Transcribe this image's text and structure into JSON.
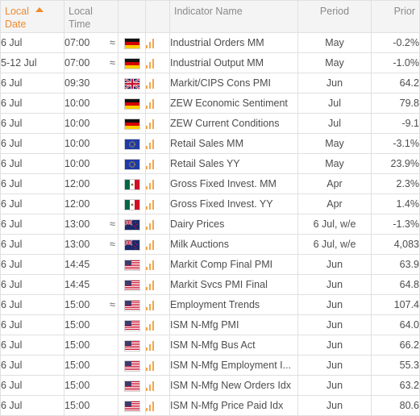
{
  "header": {
    "local_date": [
      "Local",
      "Date"
    ],
    "local_time": [
      "Local",
      "Time"
    ],
    "indicator": "Indicator Name",
    "period": "Period",
    "prior": "Prior"
  },
  "colors": {
    "accent": "#f08a2c",
    "signal_bars": "#f1a64a"
  },
  "rows": [
    {
      "date": "6 Jul",
      "time": "07:00",
      "approx": "≈",
      "flag": "de-flag-icon",
      "name": "Industrial Orders MM",
      "period": "May",
      "prior": "-0.2%"
    },
    {
      "date": "5-12 Jul",
      "time": "07:00",
      "approx": "≈",
      "flag": "de-flag-icon",
      "name": "Industrial Output MM",
      "period": "May",
      "prior": "-1.0%"
    },
    {
      "date": "6 Jul",
      "time": "09:30",
      "approx": "",
      "flag": "gb-flag-icon",
      "name": "Markit/CIPS Cons PMI",
      "period": "Jun",
      "prior": "64.2"
    },
    {
      "date": "6 Jul",
      "time": "10:00",
      "approx": "",
      "flag": "de-flag-icon",
      "name": "ZEW Economic Sentiment",
      "period": "Jul",
      "prior": "79.8"
    },
    {
      "date": "6 Jul",
      "time": "10:00",
      "approx": "",
      "flag": "de-flag-icon",
      "name": "ZEW Current Conditions",
      "period": "Jul",
      "prior": "-9.1"
    },
    {
      "date": "6 Jul",
      "time": "10:00",
      "approx": "",
      "flag": "eu-flag-icon",
      "name": "Retail Sales MM",
      "period": "May",
      "prior": "-3.1%"
    },
    {
      "date": "6 Jul",
      "time": "10:00",
      "approx": "",
      "flag": "eu-flag-icon",
      "name": "Retail Sales YY",
      "period": "May",
      "prior": "23.9%"
    },
    {
      "date": "6 Jul",
      "time": "12:00",
      "approx": "",
      "flag": "mx-flag-icon",
      "name": "Gross Fixed Invest. MM",
      "period": "Apr",
      "prior": "2.3%"
    },
    {
      "date": "6 Jul",
      "time": "12:00",
      "approx": "",
      "flag": "mx-flag-icon",
      "name": "Gross Fixed Invest. YY",
      "period": "Apr",
      "prior": "1.4%"
    },
    {
      "date": "6 Jul",
      "time": "13:00",
      "approx": "≈",
      "flag": "nz-flag-icon",
      "name": "Dairy Prices",
      "period": "6 Jul, w/e",
      "prior": "-1.3%"
    },
    {
      "date": "6 Jul",
      "time": "13:00",
      "approx": "≈",
      "flag": "nz-flag-icon",
      "name": "Milk Auctions",
      "period": "6 Jul, w/e",
      "prior": "4,083"
    },
    {
      "date": "6 Jul",
      "time": "14:45",
      "approx": "",
      "flag": "us-flag-icon",
      "name": "Markit Comp Final PMI",
      "period": "Jun",
      "prior": "63.9"
    },
    {
      "date": "6 Jul",
      "time": "14:45",
      "approx": "",
      "flag": "us-flag-icon",
      "name": "Markit Svcs PMI Final",
      "period": "Jun",
      "prior": "64.8"
    },
    {
      "date": "6 Jul",
      "time": "15:00",
      "approx": "≈",
      "flag": "us-flag-icon",
      "name": "Employment Trends",
      "period": "Jun",
      "prior": "107.4"
    },
    {
      "date": "6 Jul",
      "time": "15:00",
      "approx": "",
      "flag": "us-flag-icon",
      "name": "ISM N-Mfg PMI",
      "period": "Jun",
      "prior": "64.0"
    },
    {
      "date": "6 Jul",
      "time": "15:00",
      "approx": "",
      "flag": "us-flag-icon",
      "name": "ISM N-Mfg Bus Act",
      "period": "Jun",
      "prior": "66.2"
    },
    {
      "date": "6 Jul",
      "time": "15:00",
      "approx": "",
      "flag": "us-flag-icon",
      "name": "ISM N-Mfg Employment I...",
      "period": "Jun",
      "prior": "55.3"
    },
    {
      "date": "6 Jul",
      "time": "15:00",
      "approx": "",
      "flag": "us-flag-icon",
      "name": "ISM N-Mfg New Orders Idx",
      "period": "Jun",
      "prior": "63.2"
    },
    {
      "date": "6 Jul",
      "time": "15:00",
      "approx": "",
      "flag": "us-flag-icon",
      "name": "ISM N-Mfg Price Paid Idx",
      "period": "Jun",
      "prior": "80.6"
    }
  ]
}
